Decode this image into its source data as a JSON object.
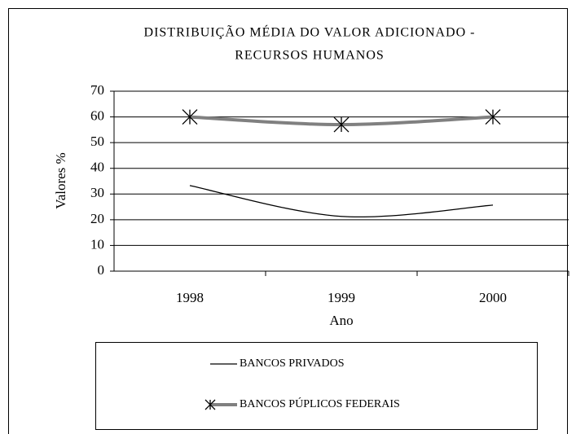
{
  "chart_data": {
    "type": "line",
    "title": [
      "DISTRIBUIÇÃO MÉDIA DO VALOR ADICIONADO -",
      "RECURSOS HUMANOS"
    ],
    "x_label": "Ano",
    "y_label": "Valores %",
    "categories": [
      "1998",
      "1999",
      "2000"
    ],
    "series": [
      {
        "name": "BANCOS PRIVADOS",
        "color": "#000000",
        "values": [
          33.3,
          21.3,
          25.7
        ]
      },
      {
        "name": "BANCOS PÚPLICOS FEDERAIS",
        "color": "#808080",
        "values": [
          60,
          57,
          60
        ],
        "marker": "asterisk"
      }
    ],
    "ylim": [
      0,
      70
    ],
    "yticks": [
      0,
      10,
      20,
      30,
      40,
      50,
      60,
      70
    ],
    "grid": true
  }
}
